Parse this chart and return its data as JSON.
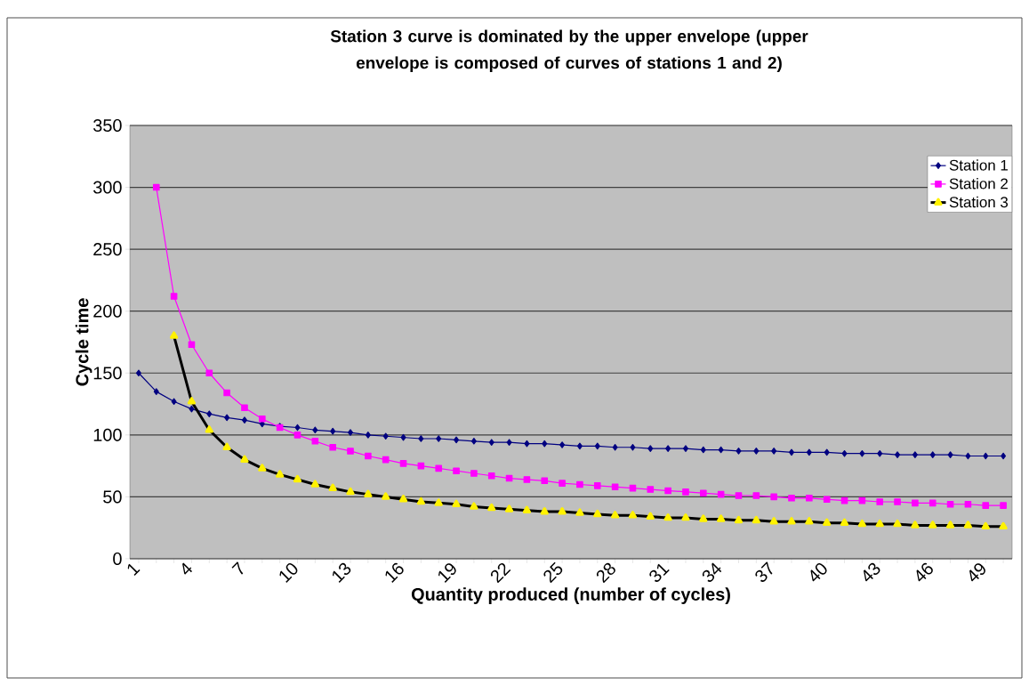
{
  "chart_data": {
    "type": "line",
    "title": "Station 3 curve is dominated by the upper envelope (upper envelope is composed of curves of stations 1 and 2)",
    "xlabel": "Quantity produced (number of cycles)",
    "ylabel": "Cycle time",
    "categories": [
      "1",
      null,
      null,
      "4",
      null,
      null,
      "7",
      null,
      null,
      "10",
      null,
      null,
      "13",
      null,
      null,
      "16",
      null,
      null,
      "19",
      null,
      null,
      "22",
      null,
      null,
      "25",
      null,
      null,
      "28",
      null,
      null,
      "31",
      null,
      null,
      "34",
      null,
      null,
      "37",
      null,
      null,
      "40",
      null,
      null,
      "43",
      null,
      null,
      "46",
      null,
      null,
      "49",
      null
    ],
    "ylim": [
      0,
      350
    ],
    "yticks": [
      0,
      50,
      100,
      150,
      200,
      250,
      300,
      350
    ],
    "grid": "y",
    "legend": "top right",
    "series": [
      {
        "name": "Station 1",
        "color": "#000080",
        "marker": "diamond",
        "values": [
          150,
          135,
          127,
          121,
          117,
          114,
          112,
          109,
          107,
          106,
          104,
          103,
          102,
          100,
          99,
          98,
          97,
          97,
          96,
          95,
          94,
          94,
          93,
          93,
          92,
          91,
          91,
          90,
          90,
          89,
          89,
          89,
          88,
          88,
          87,
          87,
          87,
          86,
          86,
          86,
          85,
          85,
          85,
          84,
          84,
          84,
          84,
          83,
          83,
          83
        ]
      },
      {
        "name": "Station 2",
        "color": "#ff00ff",
        "marker": "square",
        "values": [
          null,
          300,
          212,
          173,
          150,
          134,
          122,
          113,
          106,
          100,
          95,
          90,
          87,
          83,
          80,
          77,
          75,
          73,
          71,
          69,
          67,
          65,
          64,
          63,
          61,
          60,
          59,
          58,
          57,
          56,
          55,
          54,
          53,
          52,
          51,
          51,
          50,
          49,
          49,
          48,
          47,
          47,
          46,
          46,
          45,
          45,
          44,
          44,
          43,
          43
        ]
      },
      {
        "name": "Station 3",
        "color": "#000000",
        "marker": "triangle",
        "values": [
          null,
          null,
          180,
          127,
          104,
          90,
          80,
          73,
          68,
          64,
          60,
          57,
          54,
          52,
          50,
          48,
          46,
          45,
          44,
          42,
          41,
          40,
          39,
          38,
          38,
          37,
          36,
          35,
          35,
          34,
          33,
          33,
          32,
          32,
          31,
          31,
          30,
          30,
          30,
          29,
          29,
          28,
          28,
          28,
          27,
          27,
          27,
          27,
          26,
          26
        ]
      }
    ]
  }
}
